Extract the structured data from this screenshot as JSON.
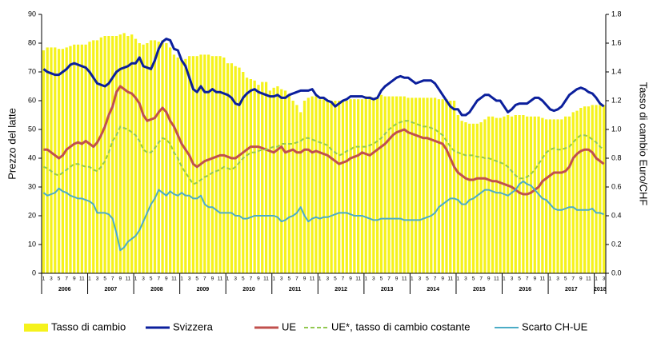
{
  "chart_data": {
    "type": "combo",
    "y_label": "Prezzo del latte",
    "y2_label": "Tasso di cambio Euro/CHF",
    "ylim": [
      0,
      90
    ],
    "yticks": [
      0,
      10,
      20,
      30,
      40,
      50,
      60,
      70,
      80,
      90
    ],
    "y2lim": [
      0,
      1.8
    ],
    "y2ticks": [
      {
        "value": 0,
        "label": "0.0"
      },
      0.2,
      0.4,
      0.6,
      0.8,
      {
        "value": 1,
        "label": "1.0"
      },
      1.2,
      1.4,
      1.6,
      1.8
    ],
    "years": [
      "2006",
      "2007",
      "2008",
      "2009",
      "2010",
      "2011",
      "2012",
      "2013",
      "2014",
      "2015",
      "2016",
      "2017",
      "2018"
    ],
    "categories": [
      "1",
      null,
      "3",
      null,
      "5",
      null,
      "7",
      null,
      "9",
      null,
      "11",
      null,
      "1",
      null,
      "3",
      null,
      "5",
      null,
      "7",
      null,
      "9",
      null,
      "11",
      null,
      "1",
      null,
      "3",
      null,
      "5",
      null,
      "7",
      null,
      "9",
      null,
      "11",
      null,
      "1",
      null,
      "3",
      null,
      "5",
      null,
      "7",
      null,
      "9",
      null,
      "11",
      null,
      "1",
      null,
      "3",
      null,
      "5",
      null,
      "7",
      null,
      "9",
      null,
      "11",
      null,
      "1",
      null,
      "3",
      null,
      "5",
      null,
      "7",
      null,
      "9",
      null,
      "11",
      null,
      "1",
      null,
      "3",
      null,
      "5",
      null,
      "7",
      null,
      "9",
      null,
      "11",
      null,
      "1",
      null,
      "3",
      null,
      "5",
      null,
      "7",
      null,
      "9",
      null,
      "11",
      null,
      "1",
      null,
      "3",
      null,
      "5",
      null,
      "7",
      null,
      "9",
      null,
      "11",
      null,
      "1",
      null,
      "3",
      null,
      "5",
      null,
      "7",
      null,
      "9",
      null,
      "11",
      null,
      "1",
      null,
      "3",
      null,
      "5",
      null,
      "7",
      null,
      "9",
      null,
      "11",
      null,
      "1",
      null,
      "3",
      null,
      "5",
      null,
      "7",
      null,
      "9",
      null,
      "11",
      null,
      "1",
      null,
      "3"
    ],
    "series": [
      {
        "name": "Tasso di cambio",
        "type": "bar",
        "axis": "y2",
        "color": "#f5f21c",
        "values": [
          1.55,
          1.57,
          1.57,
          1.57,
          1.56,
          1.56,
          1.57,
          1.58,
          1.59,
          1.59,
          1.59,
          1.59,
          1.61,
          1.62,
          1.62,
          1.64,
          1.65,
          1.65,
          1.65,
          1.65,
          1.66,
          1.67,
          1.65,
          1.66,
          1.63,
          1.6,
          1.59,
          1.6,
          1.62,
          1.62,
          1.61,
          1.62,
          1.6,
          1.57,
          1.52,
          1.5,
          1.48,
          1.49,
          1.51,
          1.51,
          1.51,
          1.52,
          1.52,
          1.52,
          1.51,
          1.51,
          1.51,
          1.5,
          1.46,
          1.46,
          1.44,
          1.43,
          1.4,
          1.36,
          1.35,
          1.34,
          1.31,
          1.33,
          1.33,
          1.27,
          1.29,
          1.3,
          1.28,
          1.27,
          1.24,
          1.2,
          1.17,
          1.12,
          1.2,
          1.22,
          1.23,
          1.23,
          1.21,
          1.21,
          1.2,
          1.2,
          1.2,
          1.2,
          1.2,
          1.2,
          1.21,
          1.21,
          1.21,
          1.21,
          1.23,
          1.23,
          1.22,
          1.22,
          1.24,
          1.23,
          1.23,
          1.23,
          1.23,
          1.23,
          1.23,
          1.22,
          1.22,
          1.22,
          1.22,
          1.22,
          1.22,
          1.22,
          1.22,
          1.21,
          1.21,
          1.21,
          1.2,
          1.2,
          1.1,
          1.06,
          1.05,
          1.04,
          1.04,
          1.04,
          1.05,
          1.07,
          1.09,
          1.09,
          1.08,
          1.08,
          1.09,
          1.1,
          1.09,
          1.1,
          1.1,
          1.1,
          1.09,
          1.09,
          1.09,
          1.09,
          1.08,
          1.07,
          1.07,
          1.07,
          1.07,
          1.07,
          1.09,
          1.09,
          1.12,
          1.13,
          1.15,
          1.16,
          1.16,
          1.17,
          1.17,
          1.17,
          1.17
        ]
      },
      {
        "name": "Svizzera",
        "type": "line",
        "color": "#0b1f9c",
        "width": 3,
        "values": [
          71,
          70,
          69.5,
          69,
          69,
          70,
          71,
          72.5,
          73,
          72.5,
          72,
          71.5,
          70,
          68,
          66,
          65.5,
          65,
          66,
          68,
          70,
          71,
          71.5,
          72,
          73,
          73,
          75,
          72,
          71.5,
          71,
          74,
          78,
          80.5,
          81.5,
          81,
          78,
          77.5,
          74,
          72,
          68,
          64,
          63,
          65,
          63,
          63,
          64,
          63,
          63,
          62.5,
          62,
          61,
          59,
          58.5,
          61,
          62.5,
          63.5,
          64,
          63,
          62.5,
          62,
          61.5,
          61.5,
          62,
          61,
          61,
          62,
          62.5,
          63,
          63.5,
          63.5,
          63.5,
          64,
          62,
          61,
          61,
          60,
          59.5,
          58,
          59,
          60,
          60.5,
          61.5,
          61.5,
          61.5,
          61.5,
          61,
          61,
          60.5,
          61,
          63.5,
          65,
          66,
          67,
          68,
          68.5,
          68,
          68,
          67,
          66,
          66.5,
          67,
          67,
          67,
          66,
          64,
          62,
          60,
          58,
          57,
          57,
          55,
          55,
          56,
          58,
          60,
          61,
          62,
          62,
          61,
          60,
          60,
          58,
          56,
          57,
          58.5,
          59,
          59,
          59,
          60,
          61,
          61,
          60,
          58.5,
          57,
          56.5,
          57,
          58,
          60,
          62,
          63,
          64,
          64.5,
          64,
          63,
          62.5,
          61,
          59,
          58
        ]
      },
      {
        "name": "UE",
        "type": "line",
        "color": "#c0504d",
        "width": 3,
        "values": [
          43,
          43,
          42,
          41,
          40,
          41,
          43,
          44,
          45,
          45.5,
          45,
          46,
          45,
          44,
          45.5,
          48,
          51,
          55,
          58,
          63,
          65,
          64,
          63,
          62.5,
          61,
          59,
          55,
          53,
          53.5,
          54,
          56,
          57.5,
          56,
          53,
          51,
          48,
          45,
          43,
          41,
          38,
          37,
          38,
          39,
          39.5,
          40,
          40.5,
          41,
          41,
          40.5,
          40,
          40,
          41,
          42,
          43,
          44,
          44,
          44,
          43.5,
          43,
          42.5,
          42,
          43,
          44,
          42,
          42.5,
          43,
          42,
          42,
          43,
          43,
          42,
          42.5,
          42,
          41.5,
          41,
          40,
          39,
          38,
          38.5,
          39,
          40,
          40.5,
          41,
          42,
          41.5,
          41,
          42,
          43,
          44,
          45,
          46.5,
          48,
          49,
          49.5,
          50,
          49,
          48.5,
          48,
          47.5,
          47,
          47,
          46.5,
          46,
          45.5,
          45,
          43,
          40,
          37,
          35,
          34,
          33,
          32.5,
          32.5,
          33,
          33,
          33,
          32.5,
          32,
          32,
          31.5,
          31,
          30.5,
          30,
          29,
          28,
          27.5,
          27.5,
          28,
          29,
          30,
          32,
          33,
          34,
          35,
          35,
          35,
          35.5,
          37,
          40,
          41.5,
          42.5,
          43,
          43,
          42,
          40,
          39,
          38
        ]
      },
      {
        "name": "UE*, tasso di cambio costante",
        "type": "line",
        "color": "#92c850",
        "width": 2,
        "dashed": true,
        "values": [
          37,
          36.5,
          35.5,
          34.5,
          34,
          35,
          36,
          37,
          38,
          38,
          37.5,
          37,
          37,
          36,
          35.5,
          37,
          39,
          42,
          46,
          48,
          51,
          50.5,
          50,
          49,
          48,
          46,
          43,
          42,
          42,
          43.5,
          45.5,
          47,
          46.5,
          45,
          42,
          40,
          37,
          35,
          33,
          31,
          31.5,
          32.5,
          33.5,
          34,
          35,
          35.5,
          36,
          37,
          36.5,
          36,
          37,
          38.5,
          40,
          41,
          42,
          42,
          42.5,
          43,
          43,
          43.5,
          44,
          44,
          45,
          45,
          45,
          45,
          45.5,
          46,
          47,
          47,
          46.5,
          46,
          45.5,
          45,
          44.5,
          43,
          42,
          41,
          41.5,
          42.5,
          43,
          44,
          44,
          44,
          44,
          44.5,
          45,
          46,
          47,
          48.5,
          50,
          51,
          52,
          52.5,
          53,
          53,
          52.5,
          52,
          51.5,
          51,
          51,
          50.5,
          50,
          49,
          48,
          46,
          44,
          42.5,
          42,
          41.5,
          41,
          41,
          41,
          40.5,
          40.5,
          40,
          40,
          39.5,
          39,
          38.5,
          38,
          37,
          35.5,
          34,
          33,
          33,
          33.5,
          34.5,
          36,
          38,
          40,
          42,
          43,
          43.5,
          43,
          43,
          43.5,
          44,
          45.5,
          47,
          48,
          48,
          47.5,
          46.5,
          45.5,
          44,
          43
        ]
      },
      {
        "name": "Scarto CH-UE",
        "type": "line",
        "color": "#4bacc6",
        "width": 2,
        "values": [
          28,
          27,
          27.5,
          28,
          29.5,
          28.5,
          28,
          27,
          26.5,
          26,
          26,
          25.5,
          25,
          24,
          21,
          21,
          21,
          20.5,
          19,
          14,
          8,
          9,
          11,
          12,
          13,
          15,
          18,
          21,
          24,
          26,
          29,
          28,
          27,
          28.5,
          27.5,
          27,
          28,
          27,
          27,
          26,
          26,
          27,
          24,
          23,
          23,
          22,
          21,
          21,
          21,
          21,
          20,
          20,
          19,
          19,
          19.5,
          20,
          20,
          20,
          20,
          20,
          20,
          19.5,
          18,
          18.5,
          19.5,
          20,
          21,
          23,
          20,
          18,
          19,
          19.5,
          19,
          19.5,
          19.5,
          20,
          20.5,
          21,
          21,
          21,
          20.5,
          20,
          20,
          20,
          19.5,
          19,
          18.5,
          18.5,
          19,
          19,
          19,
          19,
          19,
          19,
          18.5,
          18.5,
          18.5,
          18.5,
          18.5,
          19,
          19.5,
          20,
          21,
          23,
          24,
          25,
          26,
          26,
          25.5,
          24,
          24,
          25.5,
          26,
          27,
          28,
          29,
          29,
          28.5,
          28,
          28,
          27.5,
          27,
          28,
          29,
          31,
          32,
          31,
          30.5,
          29,
          27.5,
          26,
          25.5,
          24,
          22.5,
          22,
          22,
          22.5,
          23,
          23,
          22,
          22,
          22,
          22,
          22.5,
          21,
          21,
          20.5
        ]
      }
    ]
  }
}
